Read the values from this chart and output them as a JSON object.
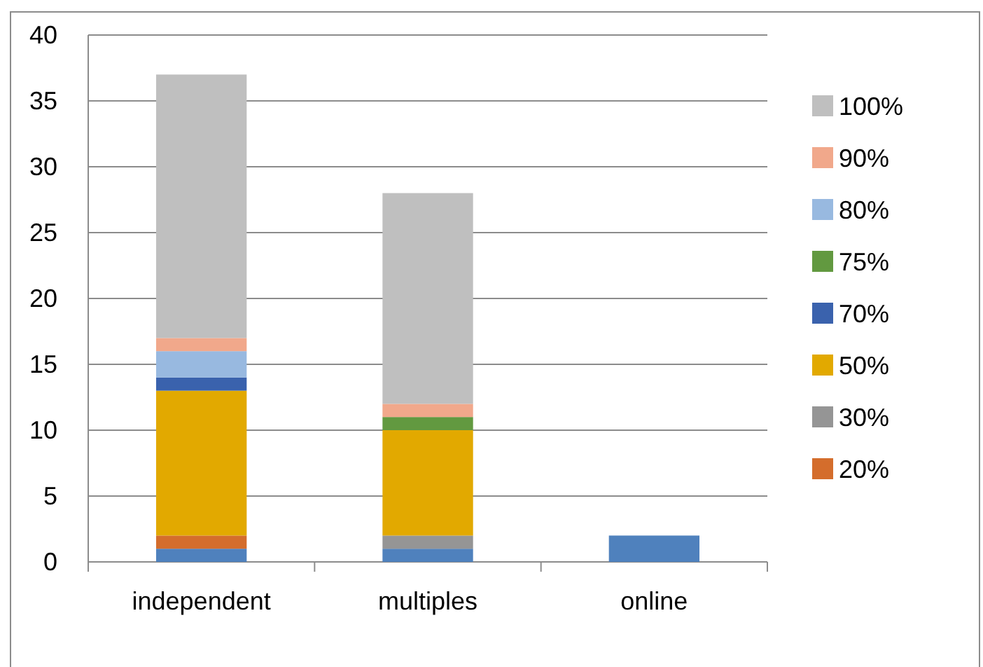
{
  "chart_data": {
    "type": "bar",
    "stacked": true,
    "categories": [
      "independent",
      "multiples",
      "online"
    ],
    "series": [
      {
        "color": "#4f81bd",
        "values": [
          1,
          1,
          2
        ]
      },
      {
        "name": "20%",
        "color": "#d46d2c",
        "values": [
          1,
          0,
          0
        ]
      },
      {
        "name": "30%",
        "color": "#959595",
        "values": [
          0,
          1,
          0
        ]
      },
      {
        "name": "50%",
        "color": "#e2a900",
        "values": [
          11,
          8,
          0
        ]
      },
      {
        "name": "70%",
        "color": "#3a62ad",
        "values": [
          1,
          0,
          0
        ]
      },
      {
        "name": "75%",
        "color": "#629940",
        "values": [
          0,
          1,
          0
        ]
      },
      {
        "name": "80%",
        "color": "#98b9e0",
        "values": [
          2,
          0,
          0
        ]
      },
      {
        "name": "90%",
        "color": "#f1a88b",
        "values": [
          1,
          1,
          0
        ]
      },
      {
        "name": "100%",
        "color": "#bfbfbf",
        "values": [
          20,
          16,
          0
        ]
      }
    ],
    "ylim": [
      0,
      40
    ],
    "yticks": [
      0,
      5,
      10,
      15,
      20,
      25,
      30,
      35,
      40
    ],
    "grid": "y",
    "legend": "right"
  }
}
